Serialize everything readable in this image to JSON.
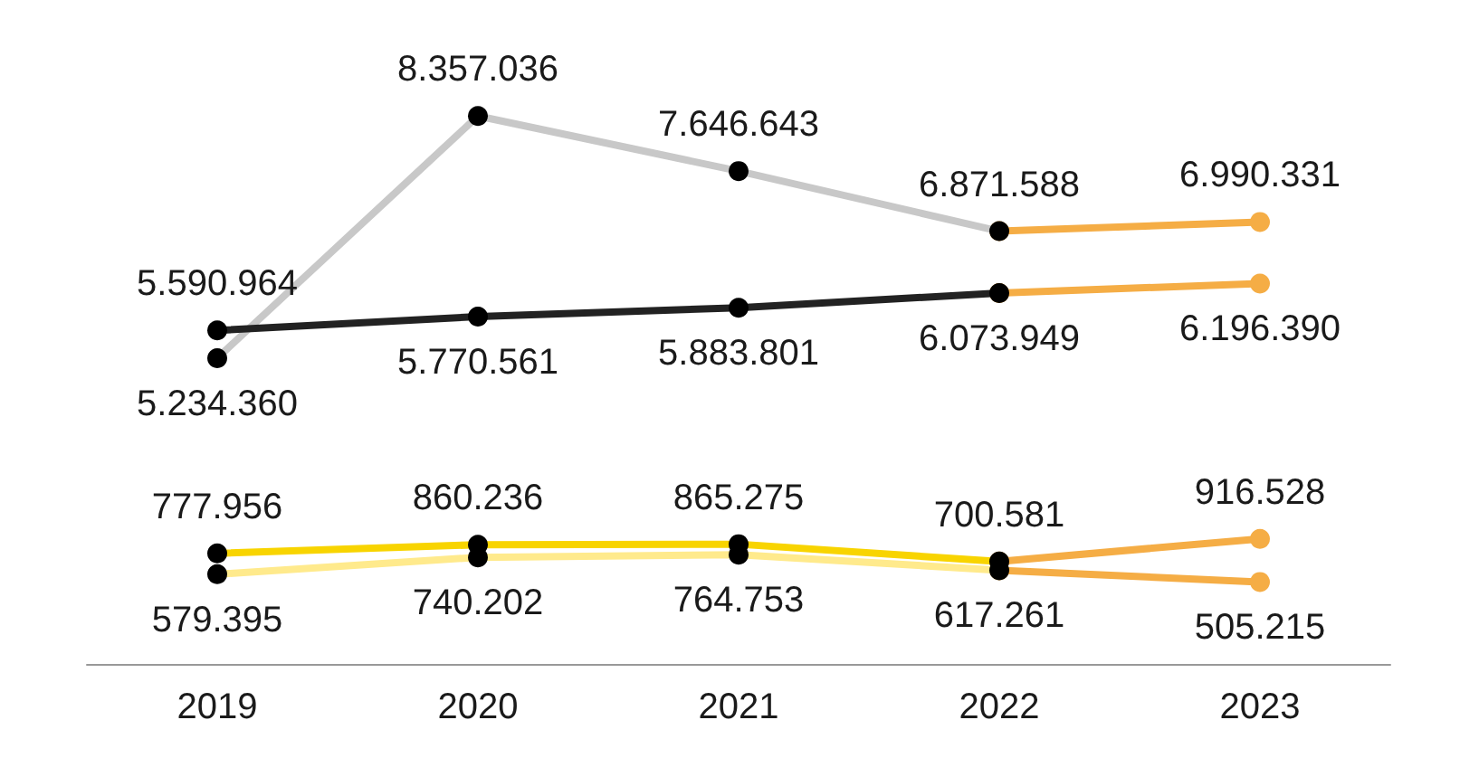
{
  "chart_data": [
    {
      "type": "line",
      "categories": [
        "2019",
        "2020",
        "2021",
        "2022",
        "2023"
      ],
      "tick_labels": false,
      "marker": "circle",
      "grid": false,
      "series": [
        {
          "color": "#c8c8c8",
          "values": [
            5234360,
            8357036,
            7646643,
            6871588,
            null
          ],
          "value_labels": [
            "5.234.360",
            "8.357.036",
            "7.646.643",
            "6.871.588",
            null
          ]
        },
        {
          "color": "#222222",
          "values": [
            5590964,
            5770561,
            5883801,
            6073949,
            null
          ],
          "value_labels": [
            "5.590.964",
            "5.770.561",
            "5.883.801",
            "6.073.949",
            null
          ]
        },
        {
          "color": "#f5ad45",
          "values": [
            null,
            null,
            null,
            6871588,
            6990331
          ],
          "value_labels": [
            null,
            null,
            null,
            null,
            "6.990.331"
          ]
        },
        {
          "color": "#f5ad45",
          "values": [
            null,
            null,
            null,
            6073949,
            6196390
          ],
          "value_labels": [
            null,
            null,
            null,
            null,
            "6.196.390"
          ]
        }
      ]
    },
    {
      "type": "line",
      "categories": [
        "2019",
        "2020",
        "2021",
        "2022",
        "2023"
      ],
      "tick_labels": "x",
      "marker": "circle",
      "grid": false,
      "series": [
        {
          "color": "#f8d400",
          "values": [
            777956,
            860236,
            865275,
            700581,
            null
          ],
          "value_labels": [
            "777.956",
            "860.236",
            "865.275",
            "700.581",
            null
          ]
        },
        {
          "color": "#ffea8c",
          "values": [
            579395,
            740202,
            764753,
            617261,
            null
          ],
          "value_labels": [
            "579.395",
            "740.202",
            "764.753",
            "617.261",
            null
          ]
        },
        {
          "color": "#f5ad45",
          "values": [
            null,
            null,
            null,
            700581,
            916528
          ],
          "value_labels": [
            null,
            null,
            null,
            null,
            "916.528"
          ]
        },
        {
          "color": "#f5ad45",
          "values": [
            null,
            null,
            null,
            617261,
            505215
          ],
          "value_labels": [
            null,
            null,
            null,
            null,
            "505.215"
          ]
        }
      ]
    }
  ]
}
